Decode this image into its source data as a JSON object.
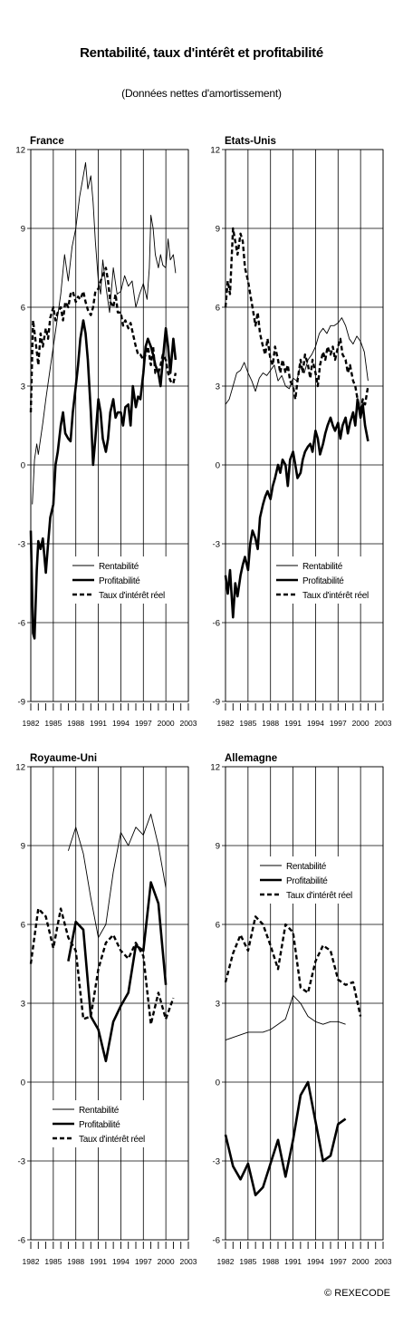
{
  "header": {
    "title": "Rentabilité, taux d'intérêt et profitabilité",
    "subtitle": "(Données nettes d'amortissement)"
  },
  "credit": "© REXECODE",
  "chart_data": [
    {
      "type": "line",
      "title": "France",
      "ylim": [
        -9,
        12
      ],
      "yticks": [
        "12",
        "9",
        "6",
        "3",
        "0",
        "-3",
        "-6",
        "-9"
      ],
      "xlim": [
        1982,
        2003
      ],
      "xticks": [
        "1982",
        "1985",
        "1988",
        "1991",
        "1994",
        "1997",
        "2000",
        "2003"
      ],
      "grid": true,
      "legend_position": "lower-right",
      "series": [
        {
          "name": "Rentabilité",
          "style": "thin",
          "x": [
            1982.2,
            1982.5,
            1982.8,
            1983.0,
            1983.3,
            1983.6,
            1984.0,
            1984.5,
            1985.0,
            1985.5,
            1986.0,
            1986.5,
            1987.0,
            1987.5,
            1988.0,
            1988.5,
            1989.0,
            1989.3,
            1989.6,
            1990.0,
            1990.3,
            1990.6,
            1991.0,
            1991.3,
            1991.6,
            1992.0,
            1992.5,
            1993.0,
            1993.5,
            1994.0,
            1994.5,
            1995.0,
            1995.5,
            1996.0,
            1996.5,
            1997.0,
            1997.5,
            1997.8,
            1998.0,
            1998.3,
            1998.6,
            1999.0,
            1999.3,
            1999.6,
            2000.0,
            2000.3,
            2000.6,
            2001.0,
            2001.3
          ],
          "values": [
            -1.5,
            0.2,
            0.8,
            0.4,
            1.0,
            1.6,
            2.5,
            3.5,
            4.5,
            5.5,
            6.5,
            8.0,
            7.0,
            8.3,
            9.0,
            10.2,
            11.0,
            11.5,
            10.5,
            11.0,
            10.0,
            8.5,
            7.0,
            6.5,
            7.8,
            6.8,
            5.8,
            7.5,
            6.5,
            6.6,
            7.2,
            6.8,
            7.0,
            6.0,
            6.5,
            6.9,
            6.3,
            7.5,
            9.5,
            9.0,
            8.0,
            7.5,
            8.0,
            7.6,
            7.5,
            8.6,
            7.8,
            8.0,
            7.3
          ]
        },
        {
          "name": "Profitabilité",
          "style": "thick",
          "x": [
            1982.0,
            1982.3,
            1982.5,
            1982.8,
            1983.0,
            1983.3,
            1983.6,
            1984.0,
            1984.3,
            1984.6,
            1985.0,
            1985.3,
            1985.6,
            1986.0,
            1986.3,
            1986.6,
            1987.0,
            1987.3,
            1987.6,
            1988.0,
            1988.3,
            1988.6,
            1989.0,
            1989.3,
            1989.6,
            1990.0,
            1990.3,
            1990.6,
            1991.0,
            1991.3,
            1991.6,
            1992.0,
            1992.3,
            1992.6,
            1993.0,
            1993.3,
            1993.6,
            1994.0,
            1994.3,
            1994.6,
            1995.0,
            1995.3,
            1995.6,
            1996.0,
            1996.3,
            1996.6,
            1997.0,
            1997.3,
            1997.6,
            1998.0,
            1998.3,
            1998.6,
            1999.0,
            1999.3,
            1999.6,
            2000.0,
            2000.3,
            2000.6,
            2001.0,
            2001.3
          ],
          "values": [
            -2.5,
            -6.4,
            -6.6,
            -4.0,
            -2.9,
            -3.2,
            -2.8,
            -4.1,
            -3.0,
            -2.0,
            -1.5,
            0.0,
            0.5,
            1.5,
            2.0,
            1.2,
            1.0,
            0.9,
            2.0,
            3.0,
            3.8,
            4.8,
            5.5,
            5.0,
            4.0,
            2.0,
            0.0,
            1.0,
            2.5,
            2.0,
            1.0,
            0.5,
            1.0,
            2.0,
            2.5,
            1.8,
            2.0,
            2.0,
            1.5,
            2.2,
            2.3,
            1.5,
            3.0,
            2.2,
            2.6,
            2.5,
            3.5,
            4.5,
            4.8,
            4.5,
            4.2,
            3.8,
            3.5,
            3.0,
            4.0,
            5.2,
            4.5,
            3.5,
            4.8,
            4.0
          ]
        },
        {
          "name": "Taux d'intérêt réel",
          "style": "dashed",
          "x": [
            1982.0,
            1982.3,
            1982.6,
            1983.0,
            1983.3,
            1983.6,
            1984.0,
            1984.3,
            1984.6,
            1985.0,
            1985.3,
            1985.6,
            1986.0,
            1986.3,
            1986.6,
            1987.0,
            1987.3,
            1987.6,
            1988.0,
            1988.3,
            1988.6,
            1989.0,
            1989.3,
            1989.6,
            1990.0,
            1990.3,
            1990.6,
            1991.0,
            1991.3,
            1991.6,
            1992.0,
            1992.3,
            1992.6,
            1993.0,
            1993.3,
            1993.6,
            1994.0,
            1994.3,
            1994.6,
            1995.0,
            1995.3,
            1995.6,
            1996.0,
            1996.3,
            1996.6,
            1997.0,
            1997.3,
            1997.6,
            1998.0,
            1998.3,
            1998.6,
            1999.0,
            1999.3,
            1999.6,
            2000.0,
            2000.3,
            2000.6,
            2001.0,
            2001.3
          ],
          "values": [
            2.0,
            5.5,
            4.8,
            3.8,
            5.0,
            4.5,
            5.2,
            4.8,
            5.6,
            6.0,
            5.5,
            5.8,
            6.0,
            5.5,
            6.2,
            6.0,
            6.5,
            6.6,
            6.2,
            6.4,
            6.3,
            6.6,
            6.2,
            5.9,
            5.7,
            6.0,
            6.6,
            6.7,
            7.0,
            7.2,
            7.5,
            7.0,
            6.2,
            6.0,
            6.5,
            5.8,
            5.8,
            5.3,
            5.5,
            5.2,
            5.4,
            5.0,
            4.5,
            4.2,
            4.2,
            4.0,
            4.2,
            4.5,
            3.8,
            4.5,
            3.5,
            3.5,
            3.8,
            4.2,
            4.0,
            3.5,
            3.2,
            3.1,
            3.5
          ]
        }
      ]
    },
    {
      "type": "line",
      "title": "Etats-Unis",
      "ylim": [
        -9,
        12
      ],
      "yticks": [
        "12",
        "9",
        "6",
        "3",
        "0",
        "-3",
        "-6",
        "-9"
      ],
      "xlim": [
        1982,
        2003
      ],
      "xticks": [
        "1982",
        "1985",
        "1988",
        "1991",
        "1994",
        "1997",
        "2000",
        "2003"
      ],
      "grid": true,
      "legend_position": "lower-right",
      "series": [
        {
          "name": "Rentabilité",
          "style": "thin",
          "x": [
            1982.0,
            1982.5,
            1983.0,
            1983.5,
            1984.0,
            1984.5,
            1985.0,
            1985.5,
            1986.0,
            1986.5,
            1987.0,
            1987.5,
            1988.0,
            1988.5,
            1989.0,
            1989.5,
            1990.0,
            1990.5,
            1991.0,
            1991.5,
            1992.0,
            1992.5,
            1993.0,
            1993.5,
            1994.0,
            1994.5,
            1995.0,
            1995.5,
            1996.0,
            1996.5,
            1997.0,
            1997.5,
            1998.0,
            1998.5,
            1999.0,
            1999.5,
            2000.0,
            2000.5,
            2001.0
          ],
          "values": [
            2.3,
            2.5,
            3.0,
            3.5,
            3.6,
            3.9,
            3.5,
            3.2,
            2.8,
            3.3,
            3.5,
            3.4,
            3.6,
            3.8,
            3.2,
            3.4,
            3.0,
            2.9,
            3.3,
            3.2,
            3.8,
            3.5,
            4.0,
            4.2,
            4.5,
            5.0,
            5.2,
            5.0,
            5.3,
            5.3,
            5.4,
            5.6,
            5.3,
            4.8,
            4.6,
            4.9,
            4.7,
            4.3,
            3.2
          ]
        },
        {
          "name": "Profitabilité",
          "style": "thick",
          "x": [
            1982.0,
            1982.3,
            1982.6,
            1983.0,
            1983.3,
            1983.6,
            1984.0,
            1984.3,
            1984.6,
            1985.0,
            1985.3,
            1985.6,
            1986.0,
            1986.3,
            1986.6,
            1987.0,
            1987.3,
            1987.6,
            1988.0,
            1988.3,
            1988.6,
            1989.0,
            1989.3,
            1989.6,
            1990.0,
            1990.3,
            1990.6,
            1991.0,
            1991.3,
            1991.6,
            1992.0,
            1992.3,
            1992.6,
            1993.0,
            1993.3,
            1993.6,
            1994.0,
            1994.3,
            1994.6,
            1995.0,
            1995.3,
            1995.6,
            1996.0,
            1996.3,
            1996.6,
            1997.0,
            1997.3,
            1997.6,
            1998.0,
            1998.3,
            1998.6,
            1999.0,
            1999.3,
            1999.6,
            2000.0,
            2000.3,
            2000.6,
            2001.0
          ],
          "values": [
            -4.2,
            -4.9,
            -4.0,
            -5.8,
            -4.5,
            -5.0,
            -4.2,
            -3.8,
            -3.5,
            -4.0,
            -3.0,
            -2.5,
            -2.8,
            -3.2,
            -2.0,
            -1.5,
            -1.2,
            -1.0,
            -1.3,
            -0.8,
            -0.5,
            0.0,
            -0.3,
            0.2,
            0.0,
            -0.8,
            0.2,
            0.5,
            0.0,
            -0.5,
            -0.3,
            0.2,
            0.5,
            0.7,
            0.8,
            0.5,
            1.3,
            1.0,
            0.4,
            0.8,
            1.2,
            1.5,
            1.8,
            1.5,
            1.3,
            1.6,
            1.0,
            1.5,
            1.8,
            1.2,
            1.6,
            2.0,
            1.5,
            2.5,
            1.8,
            2.3,
            1.5,
            0.9
          ]
        },
        {
          "name": "Taux d'intérêt réel",
          "style": "dashed",
          "x": [
            1982.0,
            1982.3,
            1982.6,
            1983.0,
            1983.3,
            1983.6,
            1984.0,
            1984.3,
            1984.6,
            1985.0,
            1985.3,
            1985.6,
            1986.0,
            1986.3,
            1986.6,
            1987.0,
            1987.3,
            1987.6,
            1988.0,
            1988.3,
            1988.6,
            1989.0,
            1989.3,
            1989.6,
            1990.0,
            1990.3,
            1990.6,
            1991.0,
            1991.3,
            1991.6,
            1992.0,
            1992.3,
            1992.6,
            1993.0,
            1993.3,
            1993.6,
            1994.0,
            1994.3,
            1994.6,
            1995.0,
            1995.3,
            1995.6,
            1996.0,
            1996.3,
            1996.6,
            1997.0,
            1997.3,
            1997.6,
            1998.0,
            1998.3,
            1998.6,
            1999.0,
            1999.3,
            1999.6,
            2000.0,
            2000.3,
            2000.6,
            2001.0
          ],
          "values": [
            6.0,
            7.0,
            6.5,
            9.0,
            8.5,
            8.0,
            8.8,
            8.5,
            7.5,
            7.0,
            6.5,
            6.0,
            5.3,
            5.8,
            5.0,
            4.5,
            4.2,
            4.8,
            4.0,
            3.8,
            4.5,
            4.0,
            3.5,
            4.0,
            3.5,
            3.8,
            3.2,
            3.0,
            2.5,
            3.2,
            4.0,
            3.5,
            4.2,
            3.8,
            3.3,
            4.0,
            3.5,
            3.0,
            3.8,
            4.3,
            4.0,
            4.5,
            4.2,
            4.5,
            4.0,
            4.5,
            4.8,
            4.2,
            4.0,
            3.5,
            3.8,
            3.2,
            3.0,
            2.5,
            2.0,
            2.5,
            2.3,
            3.0
          ]
        }
      ]
    },
    {
      "type": "line",
      "title": "Royaume-Uni",
      "ylim": [
        -6,
        12
      ],
      "yticks": [
        "12",
        "9",
        "6",
        "3",
        "0",
        "-3",
        "-6"
      ],
      "xlim": [
        1982,
        2003
      ],
      "xticks": [
        "1982",
        "1985",
        "1988",
        "1991",
        "1994",
        "1997",
        "2000",
        "2003"
      ],
      "grid": true,
      "legend_position": "lower-center",
      "series": [
        {
          "name": "Rentabilité",
          "style": "thin",
          "x": [
            1987.0,
            1988.0,
            1989.0,
            1990.0,
            1991.0,
            1992.0,
            1993.0,
            1994.0,
            1995.0,
            1996.0,
            1997.0,
            1998.0,
            1999.0,
            2000.0
          ],
          "values": [
            8.8,
            9.7,
            8.7,
            7.0,
            5.5,
            6.0,
            8.0,
            9.5,
            9.0,
            9.7,
            9.4,
            10.2,
            9.0,
            7.4
          ]
        },
        {
          "name": "Profitabilité",
          "style": "thick",
          "x": [
            1987.0,
            1988.0,
            1989.0,
            1990.0,
            1991.0,
            1992.0,
            1993.0,
            1994.0,
            1995.0,
            1996.0,
            1997.0,
            1998.0,
            1999.0,
            2000.0
          ],
          "values": [
            4.6,
            6.1,
            5.8,
            2.5,
            2.0,
            0.8,
            2.3,
            2.9,
            3.4,
            5.2,
            5.0,
            7.6,
            6.8,
            3.7
          ]
        },
        {
          "name": "Taux d'intérêt réel",
          "style": "dashed",
          "x": [
            1982.0,
            1983.0,
            1984.0,
            1985.0,
            1986.0,
            1987.0,
            1988.0,
            1989.0,
            1990.0,
            1991.0,
            1992.0,
            1993.0,
            1994.0,
            1995.0,
            1996.0,
            1997.0,
            1998.0,
            1999.0,
            2000.0,
            2001.0
          ],
          "values": [
            4.5,
            6.6,
            6.3,
            5.1,
            6.6,
            5.5,
            5.0,
            2.4,
            2.5,
            4.3,
            5.3,
            5.6,
            5.0,
            4.7,
            5.3,
            4.8,
            2.2,
            3.4,
            2.4,
            3.2
          ]
        }
      ]
    },
    {
      "type": "line",
      "title": "Allemagne",
      "ylim": [
        -6,
        12
      ],
      "yticks": [
        "12",
        "9",
        "6",
        "3",
        "0",
        "-3",
        "-6"
      ],
      "xlim": [
        1982,
        2003
      ],
      "xticks": [
        "1982",
        "1985",
        "1988",
        "1991",
        "1994",
        "1997",
        "2000",
        "2003"
      ],
      "grid": true,
      "legend_position": "upper-center",
      "series": [
        {
          "name": "Rentabilité",
          "style": "thin",
          "x": [
            1982.0,
            1983.0,
            1984.0,
            1985.0,
            1986.0,
            1987.0,
            1988.0,
            1989.0,
            1990.0,
            1991.0,
            1992.0,
            1993.0,
            1994.0,
            1995.0,
            1996.0,
            1997.0,
            1998.0
          ],
          "values": [
            1.6,
            1.7,
            1.8,
            1.9,
            1.9,
            1.9,
            2.0,
            2.2,
            2.4,
            3.3,
            3.0,
            2.5,
            2.3,
            2.2,
            2.3,
            2.3,
            2.2
          ]
        },
        {
          "name": "Profitabilité",
          "style": "thick",
          "x": [
            1982.0,
            1983.0,
            1984.0,
            1985.0,
            1986.0,
            1987.0,
            1988.0,
            1989.0,
            1990.0,
            1991.0,
            1992.0,
            1993.0,
            1994.0,
            1995.0,
            1996.0,
            1997.0,
            1998.0
          ],
          "values": [
            -2.0,
            -3.2,
            -3.7,
            -3.1,
            -4.3,
            -4.0,
            -3.1,
            -2.2,
            -3.6,
            -2.2,
            -0.5,
            0.0,
            -1.5,
            -3.0,
            -2.8,
            -1.6,
            -1.4
          ]
        },
        {
          "name": "Taux d'intérêt réel",
          "style": "dashed",
          "x": [
            1982.0,
            1983.0,
            1984.0,
            1985.0,
            1986.0,
            1987.0,
            1988.0,
            1989.0,
            1990.0,
            1991.0,
            1992.0,
            1993.0,
            1994.0,
            1995.0,
            1996.0,
            1997.0,
            1998.0,
            1999.0,
            2000.0
          ],
          "values": [
            3.8,
            4.9,
            5.6,
            5.0,
            6.3,
            6.0,
            5.2,
            4.3,
            6.0,
            5.7,
            3.6,
            3.4,
            4.6,
            5.2,
            5.0,
            3.9,
            3.7,
            3.8,
            2.5
          ]
        }
      ]
    }
  ]
}
